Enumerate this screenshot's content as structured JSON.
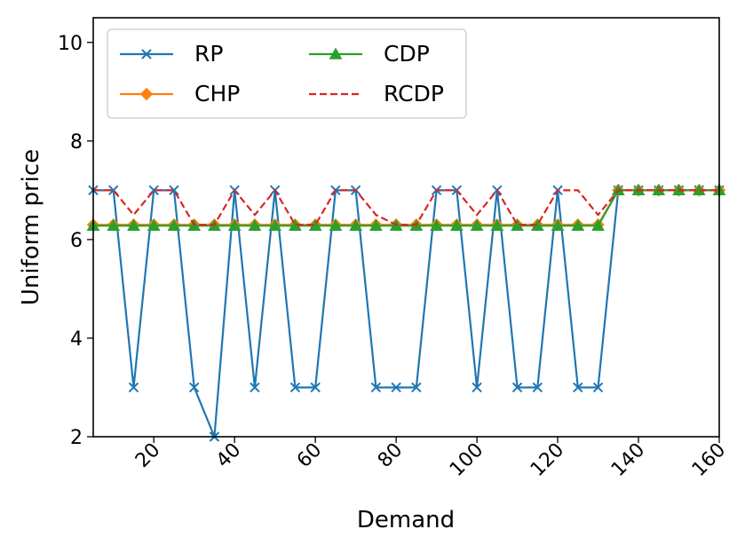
{
  "chart_data": {
    "type": "line",
    "xlabel": "Demand",
    "ylabel": "Uniform price",
    "xlim": [
      5,
      160
    ],
    "ylim": [
      2,
      10.5
    ],
    "x_ticks": [
      20,
      40,
      60,
      80,
      100,
      120,
      140,
      160
    ],
    "x_tick_labels": [
      "20",
      "40",
      "60",
      "80",
      "100",
      "120",
      "140",
      "160"
    ],
    "y_ticks": [
      2,
      4,
      6,
      8,
      10
    ],
    "y_tick_labels": [
      "2",
      "4",
      "6",
      "8",
      "10"
    ],
    "x": [
      5,
      10,
      15,
      20,
      25,
      30,
      35,
      40,
      45,
      50,
      55,
      60,
      65,
      70,
      75,
      80,
      85,
      90,
      95,
      100,
      105,
      110,
      115,
      120,
      125,
      130,
      135,
      140,
      145,
      150,
      155,
      160
    ],
    "series": [
      {
        "name": "RP",
        "color": "#1f77b4",
        "marker": "x",
        "style": "solid",
        "values": [
          7,
          7,
          3,
          7,
          7,
          3,
          2,
          7,
          3,
          7,
          3,
          3,
          7,
          7,
          3,
          3,
          3,
          7,
          7,
          3,
          7,
          3,
          3,
          7,
          3,
          3,
          7,
          7,
          7,
          7,
          7,
          7
        ]
      },
      {
        "name": "CHP",
        "color": "#ff7f0e",
        "marker": "diamond",
        "style": "solid",
        "values": [
          6.3,
          6.3,
          6.3,
          6.3,
          6.3,
          6.3,
          6.3,
          6.3,
          6.3,
          6.3,
          6.3,
          6.3,
          6.3,
          6.3,
          6.3,
          6.3,
          6.3,
          6.3,
          6.3,
          6.3,
          6.3,
          6.3,
          6.3,
          6.3,
          6.3,
          6.3,
          7,
          7,
          7,
          7,
          7,
          7
        ]
      },
      {
        "name": "CDP",
        "color": "#2ca02c",
        "marker": "triangle",
        "style": "solid",
        "values": [
          6.28,
          6.28,
          6.28,
          6.28,
          6.28,
          6.28,
          6.28,
          6.28,
          6.28,
          6.28,
          6.28,
          6.28,
          6.28,
          6.28,
          6.28,
          6.28,
          6.28,
          6.28,
          6.28,
          6.28,
          6.28,
          6.28,
          6.28,
          6.28,
          6.28,
          6.28,
          7,
          7,
          7,
          7,
          7,
          7
        ]
      },
      {
        "name": "RCDP",
        "color": "#d62728",
        "marker": "none",
        "style": "dashed",
        "values": [
          7,
          7,
          6.5,
          7,
          7,
          6.3,
          6.3,
          7,
          6.5,
          7,
          6.3,
          6.3,
          7,
          7,
          6.5,
          6.3,
          6.3,
          7,
          7,
          6.5,
          7,
          6.3,
          6.3,
          7,
          7,
          6.5,
          7,
          7,
          7,
          7,
          7,
          7
        ]
      }
    ],
    "legend": {
      "position": "top-left",
      "columns": 2
    }
  }
}
